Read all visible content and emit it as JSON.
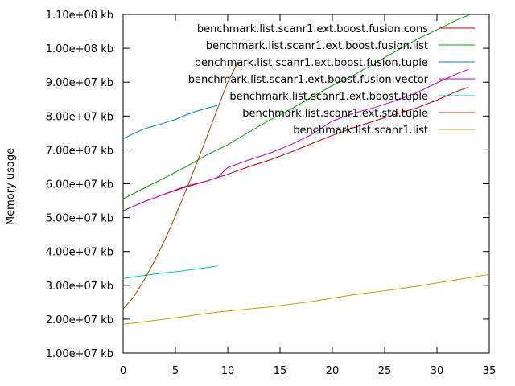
{
  "chart_data": {
    "type": "line",
    "title": "",
    "xlabel": "",
    "ylabel": "Memory usage",
    "xlim": [
      0,
      35
    ],
    "ylim": [
      10000000,
      110000000
    ],
    "x_ticks": [
      0,
      5,
      10,
      15,
      20,
      25,
      30,
      35
    ],
    "y_ticks": [
      10000000,
      20000000,
      30000000,
      40000000,
      50000000,
      60000000,
      70000000,
      80000000,
      90000000,
      100000000,
      110000000
    ],
    "y_tick_labels": [
      "1.00e+07 kb",
      "2.00e+07 kb",
      "3.00e+07 kb",
      "4.00e+07 kb",
      "5.00e+07 kb",
      "6.00e+07 kb",
      "7.00e+07 kb",
      "8.00e+07 kb",
      "9.00e+07 kb",
      "1.00e+08 kb",
      "1.10e+08 kb"
    ],
    "grid": false,
    "legend_position": "top-right",
    "series": [
      {
        "name": "benchmark.list.scanr1.ext.boost.fusion.cons",
        "color": "#c00000",
        "x": [
          0,
          2,
          4,
          6,
          8,
          10,
          12,
          14,
          16,
          18,
          20,
          22,
          24,
          26,
          28,
          30,
          32,
          33
        ],
        "y": [
          52000000,
          54700000,
          57000000,
          59000000,
          60800000,
          62800000,
          65000000,
          67000000,
          69300000,
          71800000,
          74300000,
          76500000,
          78500000,
          80500000,
          82300000,
          84700000,
          87400000,
          88500000
        ]
      },
      {
        "name": "benchmark.list.scanr1.ext.boost.fusion.list",
        "color": "#00a000",
        "x": [
          0,
          2,
          4,
          6,
          8,
          10,
          12,
          14,
          16,
          18,
          20,
          22,
          24,
          26,
          28,
          30,
          32,
          33.2
        ],
        "y": [
          55500000,
          58700000,
          61800000,
          65000000,
          68500000,
          71500000,
          75200000,
          78800000,
          82000000,
          85500000,
          89000000,
          92000000,
          95500000,
          99000000,
          102500000,
          105500000,
          108500000,
          110000000
        ]
      },
      {
        "name": "benchmark.list.scanr1.ext.boost.fusion.tuple",
        "color": "#0080c0",
        "x": [
          0,
          1,
          2,
          3,
          4,
          5,
          6,
          7,
          8,
          9
        ],
        "y": [
          73300000,
          74800000,
          76200000,
          77100000,
          78000000,
          79000000,
          80300000,
          81400000,
          82300000,
          83100000
        ]
      },
      {
        "name": "benchmark.list.scanr1.ext.boost.fusion.vector",
        "color": "#c000c0",
        "x": [
          0,
          2,
          4,
          6,
          8,
          9,
          10,
          12,
          14,
          16,
          18,
          20,
          22,
          24,
          26,
          28,
          30,
          32,
          33
        ],
        "y": [
          52000000,
          54700000,
          57000000,
          59300000,
          60800000,
          61800000,
          64800000,
          67000000,
          69000000,
          71500000,
          74500000,
          78500000,
          80800000,
          82500000,
          84500000,
          86800000,
          89800000,
          92600000,
          93800000
        ]
      },
      {
        "name": "benchmark.list.scanr1.ext.boost.tuple",
        "color": "#00c0c0",
        "x": [
          0,
          1,
          2,
          3,
          4,
          5,
          6,
          7,
          8,
          9
        ],
        "y": [
          32000000,
          32500000,
          32900000,
          33300000,
          33700000,
          34000000,
          34400000,
          34800000,
          35200000,
          35700000
        ]
      },
      {
        "name": "benchmark.list.scanr1.ext.std.tuple",
        "color": "#b04000",
        "x": [
          0,
          1,
          2,
          3,
          4,
          5,
          6,
          7,
          8,
          9,
          10,
          11
        ],
        "y": [
          23000000,
          26500000,
          31500000,
          37200000,
          43500000,
          50500000,
          58000000,
          65800000,
          73800000,
          82000000,
          90000000,
          96000000
        ]
      },
      {
        "name": "benchmark.list.scanr1.list",
        "color": "#c0a000",
        "x": [
          0,
          2,
          4,
          6,
          8,
          10,
          12,
          14,
          16,
          18,
          20,
          22,
          24,
          26,
          28,
          30,
          32,
          35
        ],
        "y": [
          18500000,
          19200000,
          20000000,
          20800000,
          21700000,
          22400000,
          23000000,
          23600000,
          24400000,
          25200000,
          26200000,
          27200000,
          28000000,
          28800000,
          29700000,
          30700000,
          31700000,
          33200000
        ]
      }
    ]
  }
}
